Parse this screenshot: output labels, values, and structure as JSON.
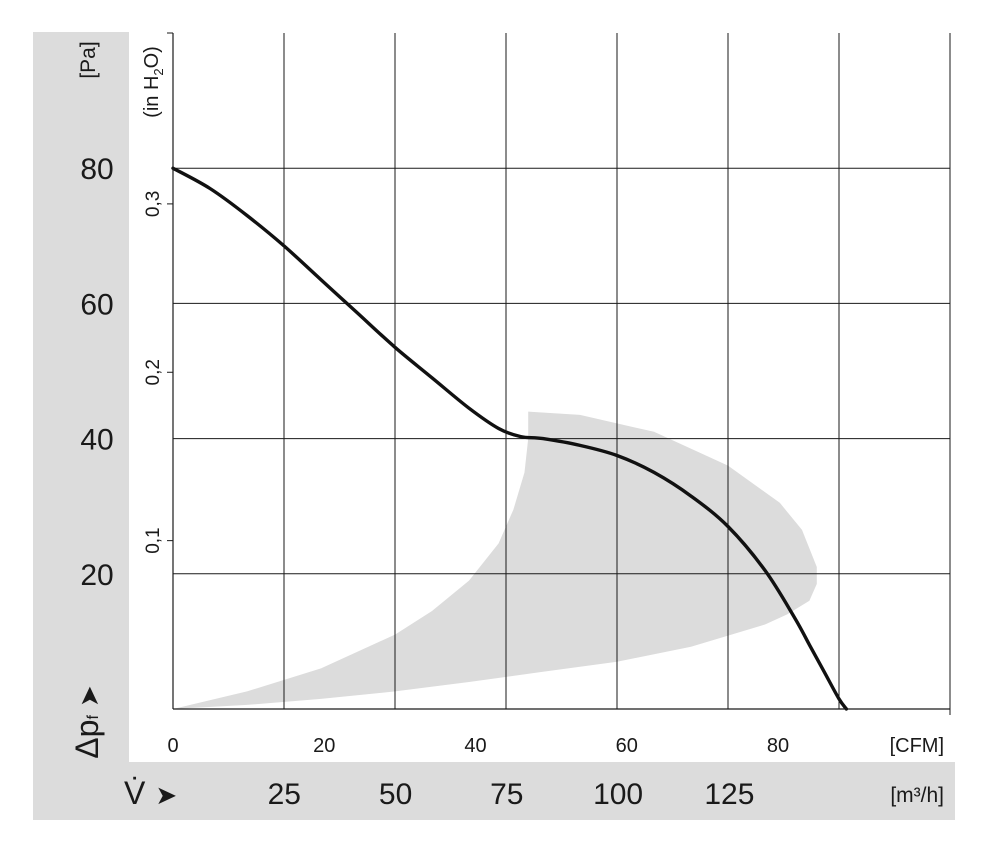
{
  "chart_data": {
    "type": "line",
    "title": "",
    "colors": {
      "band": "#dcdcdc",
      "curve": "#111111",
      "grid": "#1a1a1a",
      "panel": "#dcdcdc"
    },
    "grid": true,
    "pressure_axis": {
      "label": "[Pa]",
      "symbol": "Δp",
      "symbol_subscript": "f",
      "arrow": "➤",
      "range": [
        0,
        100
      ],
      "ticks": [
        "20",
        "40",
        "60",
        "80"
      ]
    },
    "inh2o_axis": {
      "label_prefix": "(in H",
      "label_sub": "2",
      "label_suffix": "O)",
      "range": [
        0,
        0.4015
      ],
      "ticks": [
        "0,1",
        "0,2",
        "0,3"
      ]
    },
    "cfm_axis": {
      "label": "[CFM]",
      "range": [
        0,
        105
      ],
      "ticks": [
        "0",
        "20",
        "40",
        "60",
        "80"
      ]
    },
    "m3h_axis": {
      "label": "[m³/h]",
      "symbol": "V̇",
      "arrow": "➤",
      "ticks": [
        "25",
        "50",
        "75",
        "100",
        "125"
      ]
    },
    "series": [
      {
        "x": [
          0,
          5,
          10,
          15,
          20,
          25,
          30,
          35,
          40,
          44,
          47,
          50,
          55,
          60,
          65,
          70,
          75,
          80,
          84,
          86,
          88,
          90,
          91
        ],
        "y": [
          80,
          77,
          73,
          68.5,
          63.5,
          58.5,
          53.5,
          49,
          44.5,
          41.5,
          40.3,
          40,
          39,
          37.5,
          35,
          31.5,
          27,
          20.5,
          13.5,
          9.5,
          5.5,
          1.5,
          0
        ]
      }
    ],
    "operating_range": {
      "x": [
        0,
        10,
        20,
        30,
        35,
        40,
        44,
        46,
        47.5,
        48,
        48,
        55,
        65,
        75,
        82,
        85,
        87,
        87,
        86,
        83,
        80,
        70,
        60,
        50,
        40,
        30,
        20,
        10,
        0
      ],
      "y": [
        0,
        2.6,
        6,
        11,
        14.5,
        19,
        24.5,
        29.5,
        35,
        40,
        44,
        43.5,
        41,
        36,
        30.5,
        26.5,
        21,
        18.5,
        16,
        14,
        12.5,
        9.2,
        7,
        5.5,
        4,
        2.6,
        1.5,
        0.6,
        0
      ]
    }
  }
}
